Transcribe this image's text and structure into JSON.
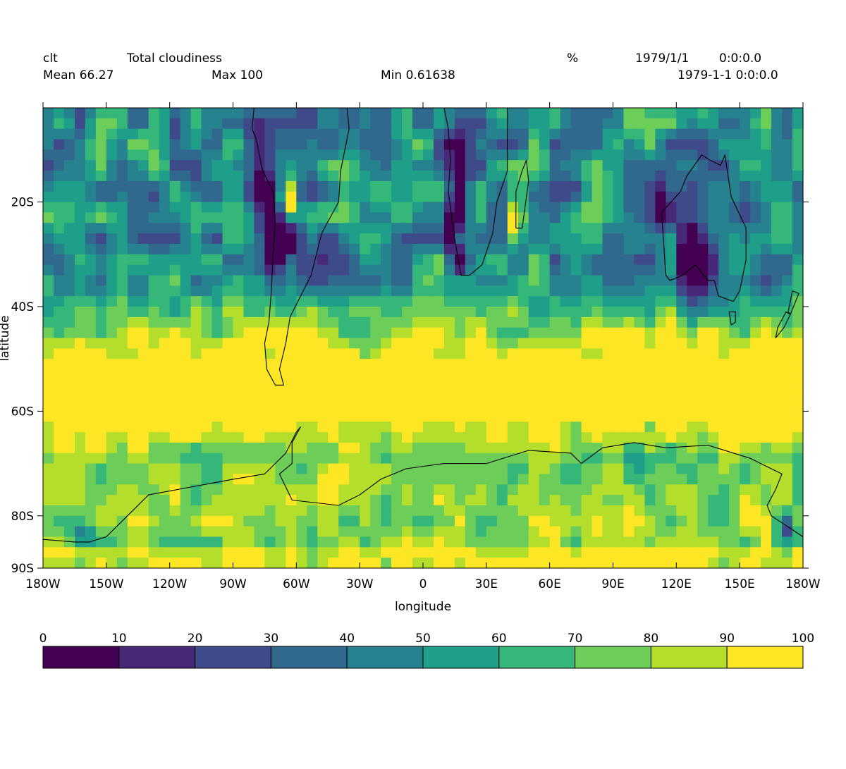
{
  "header": {
    "variable": "clt",
    "long_name": "Total cloudiness",
    "units": "%",
    "date": "1979/1/1",
    "time": "0:0:0.0",
    "mean_label": "Mean 66.27",
    "max_label": "Max 100",
    "min_label": "Min 0.61638",
    "datetime": "1979-1-1 0:0:0.0"
  },
  "chart_data": {
    "type": "heatmap",
    "title": "Total cloudiness",
    "xlabel": "longitude",
    "ylabel": "latitude",
    "units": "%",
    "xlim": [
      -180,
      180
    ],
    "ylim": [
      -90,
      -2
    ],
    "xticks": [
      {
        "value": -180,
        "label": "180W"
      },
      {
        "value": -150,
        "label": "150W"
      },
      {
        "value": -120,
        "label": "120W"
      },
      {
        "value": -90,
        "label": "90W"
      },
      {
        "value": -60,
        "label": "60W"
      },
      {
        "value": -30,
        "label": "30W"
      },
      {
        "value": 0,
        "label": "0"
      },
      {
        "value": 30,
        "label": "30E"
      },
      {
        "value": 60,
        "label": "60E"
      },
      {
        "value": 90,
        "label": "90E"
      },
      {
        "value": 120,
        "label": "120E"
      },
      {
        "value": 150,
        "label": "150E"
      },
      {
        "value": 180,
        "label": "180W"
      }
    ],
    "yticks": [
      {
        "value": -20,
        "label": "20S"
      },
      {
        "value": -40,
        "label": "40S"
      },
      {
        "value": -60,
        "label": "60S"
      },
      {
        "value": -80,
        "label": "80S"
      },
      {
        "value": -90,
        "label": "90S"
      }
    ],
    "colorbar": {
      "levels": [
        0,
        10,
        20,
        30,
        40,
        50,
        60,
        70,
        80,
        90,
        100
      ],
      "colors": [
        "#440154",
        "#482878",
        "#3e4a89",
        "#31688e",
        "#26828e",
        "#1f9e89",
        "#35b779",
        "#6dcd59",
        "#b4de2c",
        "#fde725"
      ]
    },
    "stats": {
      "mean": 66.27,
      "max": 100,
      "min": 0.61638
    }
  }
}
